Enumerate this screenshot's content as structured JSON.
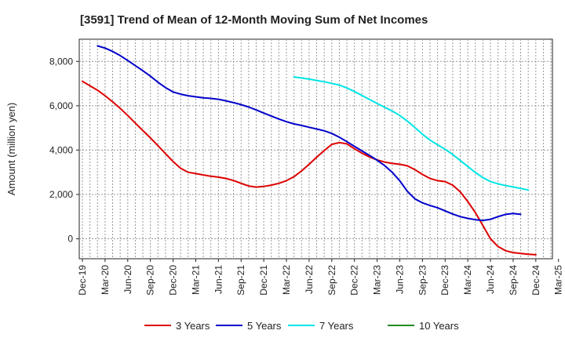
{
  "chart_data": {
    "type": "line",
    "title": "[3591]  Trend of Mean of 12-Month Moving Sum of Net Incomes",
    "xlabel": "",
    "ylabel": "Amount (million yen)",
    "ylim": [
      -900,
      9000
    ],
    "yticks": [
      0,
      2000,
      4000,
      6000,
      8000
    ],
    "ytick_labels": [
      "0",
      "2,000",
      "4,000",
      "6,000",
      "8,000"
    ],
    "x_tick_labels": [
      "Dec-19",
      "Mar-20",
      "Jun-20",
      "Sep-20",
      "Dec-20",
      "Mar-21",
      "Jun-21",
      "Sep-21",
      "Dec-21",
      "Mar-22",
      "Jun-22",
      "Sep-22",
      "Dec-22",
      "Mar-23",
      "Jun-23",
      "Sep-23",
      "Dec-23",
      "Mar-24",
      "Jun-24",
      "Sep-24",
      "Dec-24",
      "Mar-25"
    ],
    "grid": true,
    "series": [
      {
        "name": "3 Years",
        "color": "#dd0000",
        "values": [
          7100,
          6900,
          6700,
          6450,
          6180,
          5880,
          5560,
          5220,
          4880,
          4550,
          4200,
          3840,
          3480,
          3180,
          3000,
          2940,
          2880,
          2820,
          2780,
          2720,
          2630,
          2500,
          2380,
          2330,
          2360,
          2420,
          2500,
          2620,
          2800,
          3060,
          3360,
          3680,
          3980,
          4260,
          4340,
          4280,
          4060,
          3860,
          3690,
          3560,
          3460,
          3400,
          3360,
          3290,
          3120,
          2900,
          2720,
          2620,
          2580,
          2420,
          2120,
          1680,
          1180,
          600,
          0,
          -350,
          -540,
          -620,
          -660,
          -700,
          -720
        ]
      },
      {
        "name": "5 Years",
        "color": "#0000cc",
        "values": [
          null,
          null,
          8700,
          8600,
          8450,
          8260,
          8040,
          7810,
          7580,
          7330,
          7060,
          6820,
          6620,
          6520,
          6450,
          6400,
          6360,
          6330,
          6290,
          6220,
          6140,
          6050,
          5940,
          5810,
          5670,
          5530,
          5400,
          5280,
          5180,
          5110,
          5030,
          4950,
          4870,
          4750,
          4580,
          4380,
          4170,
          3960,
          3760,
          3540,
          3300,
          3000,
          2610,
          2140,
          1800,
          1620,
          1500,
          1400,
          1260,
          1120,
          1000,
          920,
          860,
          830,
          880,
          1000,
          1100,
          1140,
          1100
        ]
      },
      {
        "name": "7 Years",
        "color": "#00e5e5",
        "values": [
          null,
          null,
          null,
          null,
          null,
          null,
          null,
          null,
          null,
          null,
          null,
          null,
          null,
          null,
          null,
          null,
          null,
          null,
          null,
          null,
          null,
          null,
          null,
          null,
          null,
          null,
          null,
          null,
          7300,
          7250,
          7200,
          7140,
          7080,
          7010,
          6930,
          6800,
          6640,
          6460,
          6280,
          6100,
          5930,
          5760,
          5560,
          5310,
          5020,
          4710,
          4450,
          4240,
          4040,
          3800,
          3530,
          3260,
          2990,
          2760,
          2580,
          2480,
          2400,
          2340,
          2270,
          2200
        ]
      },
      {
        "name": "10 Years",
        "color": "#228b22",
        "values": []
      }
    ],
    "legend_position": "bottom"
  }
}
